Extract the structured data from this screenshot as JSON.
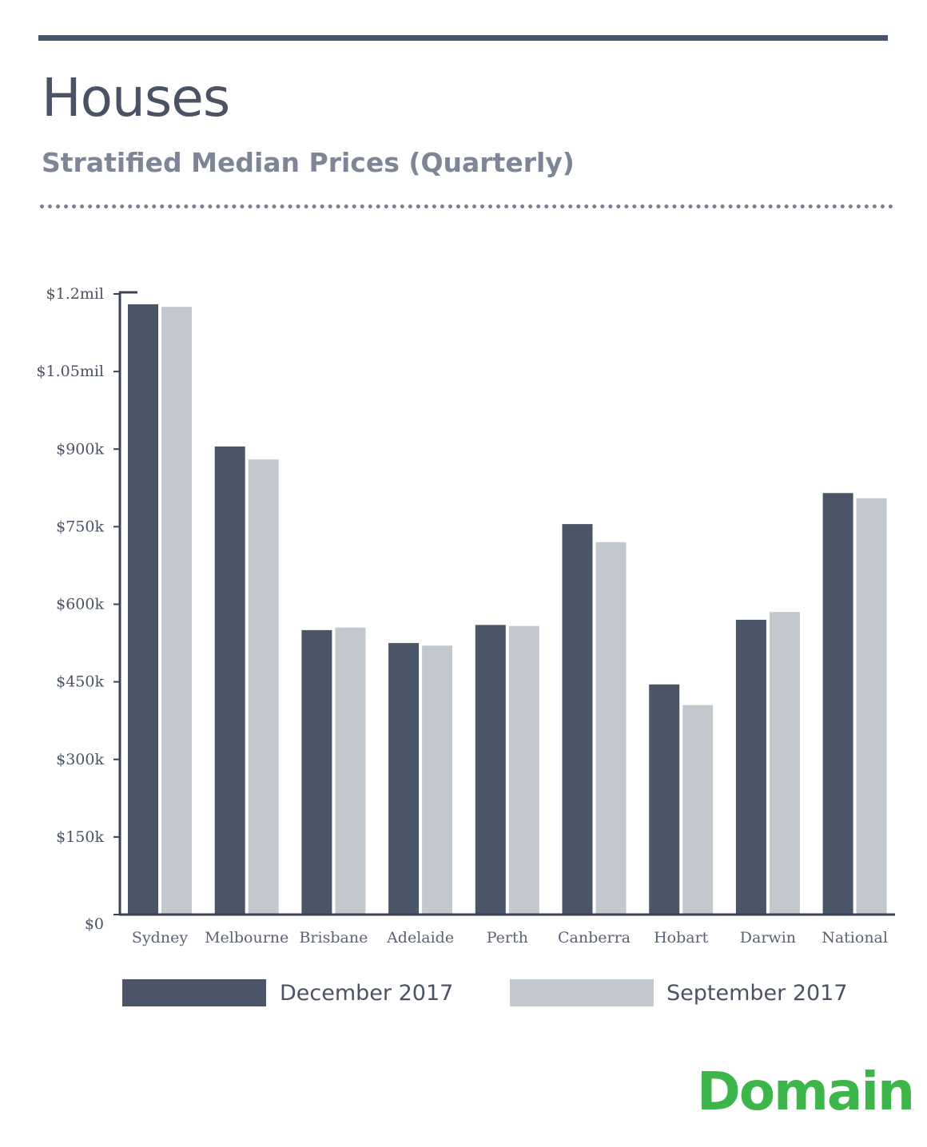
{
  "header": {
    "title": "Houses",
    "subtitle": "Stratified Median Prices (Quarterly)"
  },
  "brand": {
    "name": "Domain",
    "color": "#3cb54a"
  },
  "chart_data": {
    "type": "bar",
    "categories": [
      "Sydney",
      "Melbourne",
      "Brisbane",
      "Adelaide",
      "Perth",
      "Canberra",
      "Hobart",
      "Darwin",
      "National"
    ],
    "series": [
      {
        "name": "December 2017",
        "color": "#4a5568",
        "values": [
          1180000,
          905000,
          550000,
          525000,
          560000,
          755000,
          445000,
          570000,
          815000
        ]
      },
      {
        "name": "September 2017",
        "color": "#c3c7ce",
        "values": [
          1175000,
          880000,
          555000,
          520000,
          558000,
          720000,
          405000,
          585000,
          805000
        ]
      }
    ],
    "yticks": [
      {
        "value": 0,
        "label": "$0"
      },
      {
        "value": 150000,
        "label": "$150k"
      },
      {
        "value": 300000,
        "label": "$300k"
      },
      {
        "value": 450000,
        "label": "$450k"
      },
      {
        "value": 600000,
        "label": "$600k"
      },
      {
        "value": 750000,
        "label": "$750k"
      },
      {
        "value": 900000,
        "label": "$900k"
      },
      {
        "value": 1050000,
        "label": "$1.05mil"
      },
      {
        "value": 1200000,
        "label": "$1.2mil"
      }
    ],
    "ylim": [
      0,
      1200000
    ],
    "grid": false,
    "legend": "bottom"
  }
}
